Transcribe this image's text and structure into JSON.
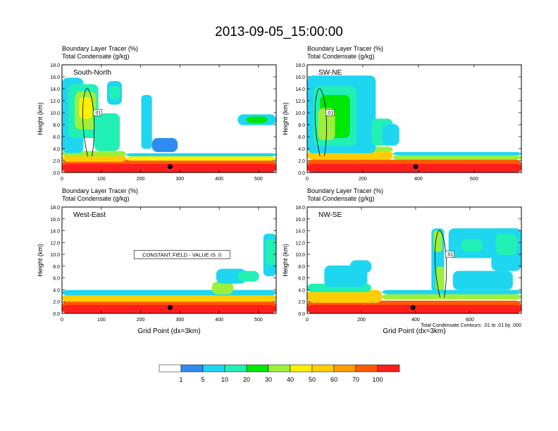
{
  "title": "2013-09-05_15:00:00",
  "colorbar": {
    "colors": [
      "#ffffff",
      "#2e8cf0",
      "#1fd6f0",
      "#21f0b4",
      "#00e800",
      "#9cf03c",
      "#fff000",
      "#ffce00",
      "#ff9c00",
      "#ff5a00",
      "#ff1e1e"
    ],
    "labels": [
      "1",
      "5",
      "10",
      "20",
      "30",
      "40",
      "50",
      "60",
      "70",
      "100"
    ]
  },
  "chart_data": [
    {
      "type": "heatmap",
      "field_titles": [
        "Boundary Layer Tracer   (%)",
        "Total Condensate   (g/kg)"
      ],
      "panel_label": "South-North",
      "ylabel": "Height (km)",
      "xlabel": "",
      "xlim": [
        0,
        545
      ],
      "ylim": [
        0,
        18
      ],
      "xticks": [
        "0",
        "100",
        "200",
        "300",
        "400",
        "500"
      ],
      "yticks": [
        "0.0",
        "2.0",
        "4.0",
        "6.0",
        "8.0",
        "10.0",
        "12.0",
        "14.0",
        "16.0",
        "18.0"
      ],
      "contour_label": ".01",
      "note": "",
      "marker_x": 275
    },
    {
      "type": "heatmap",
      "field_titles": [
        "Boundary Layer Tracer   (%)",
        "Total Condensate   (g/kg)"
      ],
      "panel_label": "SW-NE",
      "ylabel": "Height (km)",
      "xlabel": "",
      "xlim": [
        0,
        770
      ],
      "ylim": [
        0,
        18
      ],
      "xticks": [
        "0",
        "200",
        "400",
        "600"
      ],
      "yticks": [
        "0.0",
        "2.0",
        "4.0",
        "6.0",
        "8.0",
        "10.0",
        "12.0",
        "14.0",
        "16.0",
        "18.0"
      ],
      "contour_label": ".01",
      "note": "",
      "marker_x": 390
    },
    {
      "type": "heatmap",
      "field_titles": [
        "Boundary Layer Tracer   (%)",
        "Total Condensate   (g/kg)"
      ],
      "panel_label": "West-East",
      "ylabel": "Height (km)",
      "xlabel": "Grid Point (dx=3km)",
      "xlim": [
        0,
        545
      ],
      "ylim": [
        0,
        18
      ],
      "xticks": [
        "0",
        "100",
        "200",
        "300",
        "400",
        "500"
      ],
      "yticks": [
        "0.0",
        "2.0",
        "4.0",
        "6.0",
        "8.0",
        "10.0",
        "12.0",
        "14.0",
        "16.0",
        "18.0"
      ],
      "contour_label": "",
      "note": "CONSTANT FIELD - VALUE IS .0",
      "marker_x": 275
    },
    {
      "type": "heatmap",
      "field_titles": [
        "Boundary Layer Tracer   (%)",
        "Total Condensate   (g/kg)"
      ],
      "panel_label": "NW-SE",
      "ylabel": "Height (km)",
      "xlabel": "Grid Point (dx=3km)",
      "xlim": [
        0,
        790
      ],
      "ylim": [
        0,
        18
      ],
      "xticks": [
        "0",
        "200",
        "400",
        "600"
      ],
      "yticks": [
        "0.0",
        "2.0",
        "4.0",
        "6.0",
        "8.0",
        "10.0",
        "12.0",
        "14.0",
        "16.0",
        "18.0"
      ],
      "contour_label": ".01",
      "note": "Total Condensate Contours: .01 to .01 by .000",
      "marker_x": 390
    }
  ]
}
